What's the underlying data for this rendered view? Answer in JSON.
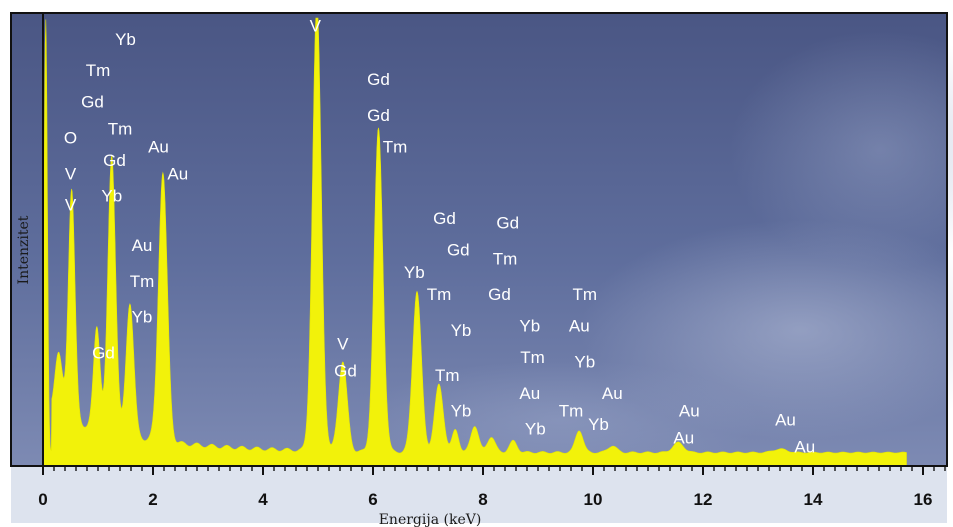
{
  "chart_data": {
    "type": "area",
    "xlabel": "Energija (keV)",
    "ylabel": "Intenzitet",
    "xlim": [
      -0.2,
      16.5
    ],
    "ylim": [
      0,
      100
    ],
    "x_ticks": [
      "0",
      "2",
      "4",
      "6",
      "8",
      "10",
      "12",
      "14",
      "16"
    ],
    "grid": false,
    "colors": {
      "spectrum": "#f2f20a",
      "plot_background": "#5b6a9a",
      "peak_label": "#ffffff"
    },
    "peaks": [
      {
        "x": 0.05,
        "y": 99,
        "width": 0.03
      },
      {
        "x": 0.28,
        "y": 14,
        "width": 0.07
      },
      {
        "x": 0.52,
        "y": 52,
        "width": 0.06
      },
      {
        "x": 0.98,
        "y": 23,
        "width": 0.06
      },
      {
        "x": 1.25,
        "y": 62,
        "width": 0.07
      },
      {
        "x": 1.58,
        "y": 30,
        "width": 0.07
      },
      {
        "x": 2.18,
        "y": 60,
        "width": 0.08
      },
      {
        "x": 4.98,
        "y": 100,
        "width": 0.08
      },
      {
        "x": 5.45,
        "y": 20,
        "width": 0.08
      },
      {
        "x": 6.1,
        "y": 72,
        "width": 0.08
      },
      {
        "x": 6.8,
        "y": 36,
        "width": 0.08
      },
      {
        "x": 7.2,
        "y": 15,
        "width": 0.08
      },
      {
        "x": 7.5,
        "y": 5,
        "width": 0.06
      },
      {
        "x": 7.85,
        "y": 6,
        "width": 0.07
      },
      {
        "x": 8.15,
        "y": 3.5,
        "width": 0.07
      },
      {
        "x": 8.55,
        "y": 2.5,
        "width": 0.07
      },
      {
        "x": 9.75,
        "y": 5,
        "width": 0.07
      },
      {
        "x": 10.35,
        "y": 1.5,
        "width": 0.08
      },
      {
        "x": 11.55,
        "y": 2.2,
        "width": 0.1
      },
      {
        "x": 13.4,
        "y": 0.8,
        "width": 0.12
      }
    ],
    "annotations": [
      {
        "text": "Yb",
        "x": 1.5,
        "y": 94
      },
      {
        "text": "Tm",
        "x": 1.0,
        "y": 87
      },
      {
        "text": "Gd",
        "x": 0.9,
        "y": 80
      },
      {
        "text": "O",
        "x": 0.5,
        "y": 72
      },
      {
        "text": "Tm",
        "x": 1.4,
        "y": 74
      },
      {
        "text": "Gd",
        "x": 1.3,
        "y": 67
      },
      {
        "text": "Au",
        "x": 2.1,
        "y": 70
      },
      {
        "text": "V",
        "x": 0.5,
        "y": 64
      },
      {
        "text": "Au",
        "x": 2.45,
        "y": 64
      },
      {
        "text": "Yb",
        "x": 1.25,
        "y": 59
      },
      {
        "text": "V",
        "x": 0.5,
        "y": 57
      },
      {
        "text": "Au",
        "x": 1.8,
        "y": 48
      },
      {
        "text": "Tm",
        "x": 1.8,
        "y": 40
      },
      {
        "text": "Yb",
        "x": 1.8,
        "y": 32
      },
      {
        "text": "Gd",
        "x": 1.1,
        "y": 24
      },
      {
        "text": "V",
        "x": 4.95,
        "y": 97
      },
      {
        "text": "Gd",
        "x": 6.1,
        "y": 85
      },
      {
        "text": "Gd",
        "x": 6.1,
        "y": 77
      },
      {
        "text": "Tm",
        "x": 6.4,
        "y": 70
      },
      {
        "text": "V",
        "x": 5.45,
        "y": 26
      },
      {
        "text": "Gd",
        "x": 5.5,
        "y": 20
      },
      {
        "text": "Gd",
        "x": 7.3,
        "y": 54
      },
      {
        "text": "Gd",
        "x": 8.45,
        "y": 53
      },
      {
        "text": "Gd",
        "x": 7.55,
        "y": 47
      },
      {
        "text": "Tm",
        "x": 8.4,
        "y": 45
      },
      {
        "text": "Yb",
        "x": 6.75,
        "y": 42
      },
      {
        "text": "Tm",
        "x": 7.2,
        "y": 37
      },
      {
        "text": "Gd",
        "x": 8.3,
        "y": 37
      },
      {
        "text": "Tm",
        "x": 9.85,
        "y": 37
      },
      {
        "text": "Yb",
        "x": 7.6,
        "y": 29
      },
      {
        "text": "Yb",
        "x": 8.85,
        "y": 30
      },
      {
        "text": "Au",
        "x": 9.75,
        "y": 30
      },
      {
        "text": "Tm",
        "x": 8.9,
        "y": 23
      },
      {
        "text": "Yb",
        "x": 9.85,
        "y": 22
      },
      {
        "text": "Tm",
        "x": 7.35,
        "y": 19
      },
      {
        "text": "Au",
        "x": 8.85,
        "y": 15
      },
      {
        "text": "Au",
        "x": 10.35,
        "y": 15
      },
      {
        "text": "Tm",
        "x": 9.6,
        "y": 11
      },
      {
        "text": "Yb",
        "x": 7.6,
        "y": 11
      },
      {
        "text": "Au",
        "x": 11.75,
        "y": 11
      },
      {
        "text": "Yb",
        "x": 10.1,
        "y": 8
      },
      {
        "text": "Yb",
        "x": 8.95,
        "y": 7
      },
      {
        "text": "Au",
        "x": 13.5,
        "y": 9
      },
      {
        "text": "Au",
        "x": 11.65,
        "y": 5
      },
      {
        "text": "Au",
        "x": 13.85,
        "y": 3
      }
    ]
  }
}
